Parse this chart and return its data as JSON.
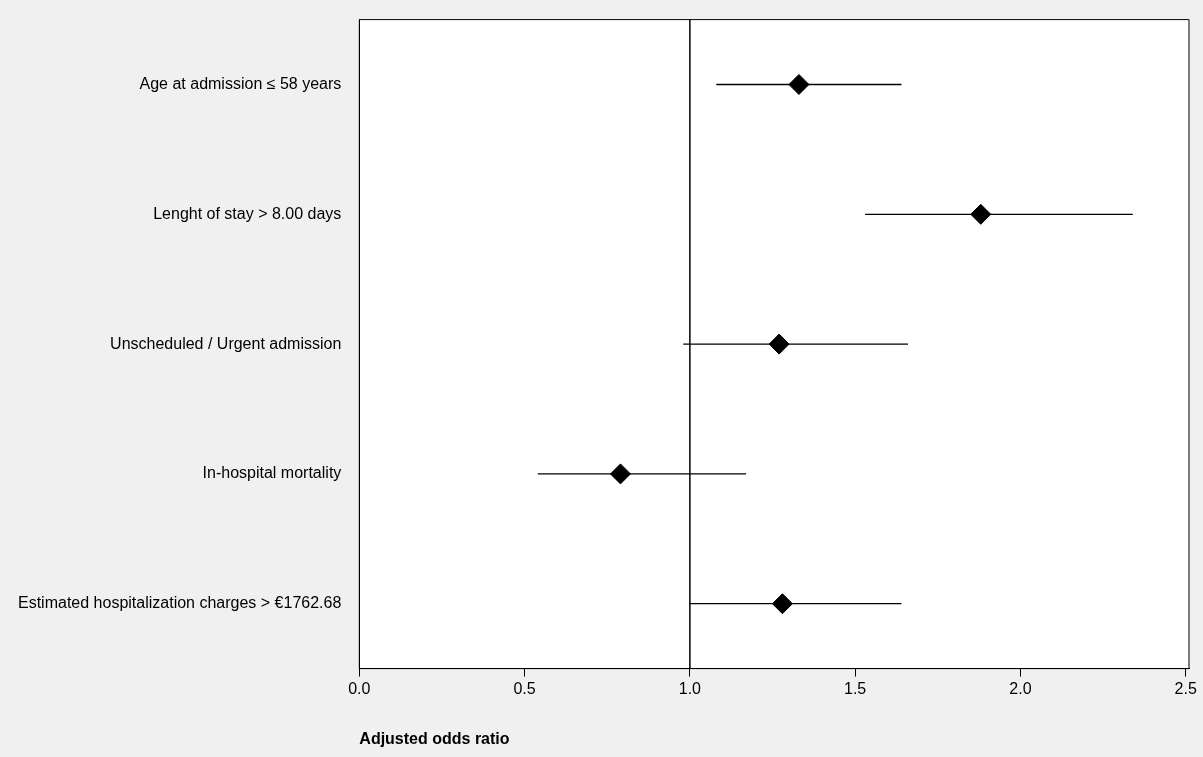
{
  "chart_data": {
    "type": "scatter",
    "orientation": "horizontal",
    "categories": [
      "Age at admission ≤ 58 years",
      "Lenght of stay > 8.00 days",
      "Unscheduled / Urgent admission",
      "In-hospital mortality",
      "Estimated hospitalization charges > €1762.68"
    ],
    "values": [
      1.33,
      1.88,
      1.27,
      0.79,
      1.28
    ],
    "errors": [
      [
        1.08,
        1.64
      ],
      [
        1.53,
        2.34
      ],
      [
        0.98,
        1.66
      ],
      [
        0.54,
        1.17
      ],
      [
        1.0,
        1.64
      ]
    ],
    "color": "#000000",
    "marker": "diamond",
    "xlabel": "Adjusted odds ratio",
    "xlim": [
      0,
      2.51
    ],
    "xticks": [
      {
        "value": 0,
        "label": "0.0"
      },
      {
        "value": 0.5,
        "label": "0.5"
      },
      {
        "value": 1,
        "label": "1.0"
      },
      {
        "value": 1.5,
        "label": "1.5"
      },
      {
        "value": 2,
        "label": "2.0"
      },
      {
        "value": 2.5,
        "label": "2.5"
      }
    ],
    "ref_lines": [
      {
        "axis": "x",
        "value": 1,
        "color": "#000000"
      }
    ],
    "grid": false,
    "legend": false
  }
}
